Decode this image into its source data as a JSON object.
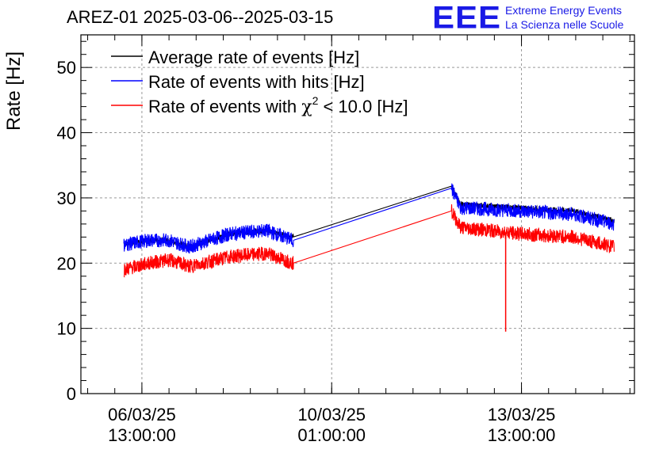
{
  "header": {
    "title": "AREZ-01 2025-03-06--2025-03-15",
    "logo": "EEE",
    "org_line1": "Extreme Energy Events",
    "org_line2": "La Scienza nelle Scuole"
  },
  "chart_data": {
    "type": "line",
    "title": "AREZ-01 2025-03-06--2025-03-15",
    "xlabel": "",
    "ylabel": "Rate [Hz]",
    "ylim": [
      0,
      55
    ],
    "yticks": [
      0,
      10,
      20,
      30,
      40,
      50
    ],
    "xlim": [
      "2025-03-05 10:00:00",
      "2025-03-15 15:00:00"
    ],
    "xticks": [
      {
        "x": "2025-03-06 13:00:00",
        "label1": "06/03/25",
        "label2": "13:00:00"
      },
      {
        "x": "2025-03-10 01:00:00",
        "label1": "10/03/25",
        "label2": "01:00:00"
      },
      {
        "x": "2025-03-13 13:00:00",
        "label1": "13/03/25",
        "label2": "13:00:00"
      }
    ],
    "grid": true,
    "legend_position": "top-left",
    "legend": [
      {
        "label": "Average rate of events [Hz]",
        "color": "#000000"
      },
      {
        "label": "Rate of events with hits [Hz]",
        "color": "#0000ff"
      },
      {
        "label_prefix": "Rate of events with ",
        "label_symbol": "χ",
        "label_sup": "2",
        "label_suffix": " < 10.0 [Hz]",
        "color": "#ff0000"
      }
    ],
    "series": [
      {
        "name": "Average rate of events [Hz]",
        "color": "#000000",
        "noise": 0,
        "points": [
          [
            "2025-03-06 05:00:00",
            23.0
          ],
          [
            "2025-03-06 16:00:00",
            23.5
          ],
          [
            "2025-03-07 01:00:00",
            23.5
          ],
          [
            "2025-03-07 10:00:00",
            22.5
          ],
          [
            "2025-03-08 04:00:00",
            24.5
          ],
          [
            "2025-03-08 20:00:00",
            25.0
          ],
          [
            "2025-03-09 08:00:00",
            24.0
          ],
          [
            "2025-03-12 06:00:00",
            31.8
          ],
          [
            "2025-03-12 10:00:00",
            29.0
          ],
          [
            "2025-03-13 12:00:00",
            28.5
          ],
          [
            "2025-03-14 12:00:00",
            28.0
          ],
          [
            "2025-03-15 06:00:00",
            26.5
          ]
        ]
      },
      {
        "name": "Rate of events with hits [Hz]",
        "color": "#0000ff",
        "noise": 1.1,
        "points": [
          [
            "2025-03-06 05:00:00",
            22.8
          ],
          [
            "2025-03-06 16:00:00",
            23.5
          ],
          [
            "2025-03-07 01:00:00",
            23.5
          ],
          [
            "2025-03-07 10:00:00",
            22.5
          ],
          [
            "2025-03-08 04:00:00",
            24.5
          ],
          [
            "2025-03-08 20:00:00",
            25.0
          ],
          [
            "2025-03-09 08:00:00",
            23.5
          ],
          [
            "2025-03-12 06:00:00",
            31.5
          ],
          [
            "2025-03-12 10:00:00",
            28.5
          ],
          [
            "2025-03-13 12:00:00",
            28.0
          ],
          [
            "2025-03-14 12:00:00",
            27.5
          ],
          [
            "2025-03-15 06:00:00",
            26.0
          ]
        ]
      },
      {
        "name": "Rate of events with χ2 < 10.0 [Hz]",
        "color": "#ff0000",
        "noise": 1.1,
        "points": [
          [
            "2025-03-06 05:00:00",
            19.0
          ],
          [
            "2025-03-06 16:00:00",
            20.0
          ],
          [
            "2025-03-07 01:00:00",
            20.5
          ],
          [
            "2025-03-07 10:00:00",
            19.5
          ],
          [
            "2025-03-08 04:00:00",
            21.0
          ],
          [
            "2025-03-08 20:00:00",
            21.5
          ],
          [
            "2025-03-09 08:00:00",
            20.0
          ],
          [
            "2025-03-12 06:00:00",
            28.0
          ],
          [
            "2025-03-12 10:00:00",
            25.5
          ],
          [
            "2025-03-13 12:00:00",
            24.5
          ],
          [
            "2025-03-14 12:00:00",
            24.0
          ],
          [
            "2025-03-15 06:00:00",
            22.5
          ]
        ],
        "spike": {
          "x": "2025-03-13 06:00:00",
          "y": 9.5
        }
      }
    ]
  }
}
